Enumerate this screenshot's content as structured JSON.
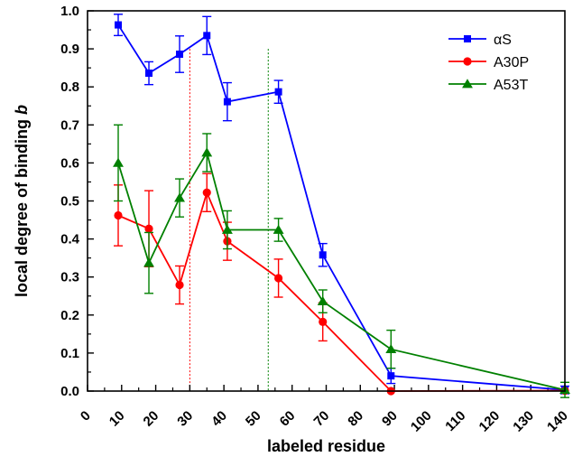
{
  "chart_data": {
    "type": "line",
    "xlabel": "labeled residue",
    "ylabel_prefix": "local degree of binding ",
    "ylabel_var": "b",
    "xlim": [
      0,
      140
    ],
    "ylim": [
      0,
      1.0
    ],
    "x_ticks": [
      0,
      10,
      20,
      30,
      40,
      50,
      60,
      70,
      80,
      90,
      100,
      110,
      120,
      130,
      140
    ],
    "x_tick_labels": [
      "0",
      "10",
      "20",
      "30",
      "40",
      "50",
      "60",
      "70",
      "80",
      "90",
      "100",
      "110",
      "120",
      "130",
      "140"
    ],
    "y_ticks": [
      0.0,
      0.1,
      0.2,
      0.3,
      0.4,
      0.5,
      0.6,
      0.7,
      0.8,
      0.9,
      1.0
    ],
    "y_tick_labels": [
      "0.0",
      "0.1",
      "0.2",
      "0.3",
      "0.4",
      "0.5",
      "0.6",
      "0.7",
      "0.8",
      "0.9",
      "1.0"
    ],
    "grid": false,
    "legend_position": "top-right",
    "series": [
      {
        "name": "αS",
        "color": "#0000ff",
        "marker": "square",
        "x": [
          9,
          18,
          27,
          35,
          41,
          56,
          69,
          89,
          140
        ],
        "y": [
          0.963,
          0.836,
          0.886,
          0.935,
          0.761,
          0.787,
          0.358,
          0.04,
          0.003
        ],
        "err": [
          0.028,
          0.03,
          0.048,
          0.05,
          0.05,
          0.03,
          0.03,
          0.02,
          0.01
        ]
      },
      {
        "name": "A30P",
        "color": "#ff0000",
        "marker": "circle",
        "x": [
          9,
          18,
          27,
          35,
          41,
          56,
          69,
          89,
          140
        ],
        "y": [
          0.462,
          0.427,
          0.279,
          0.522,
          0.394,
          0.297,
          0.182,
          0.0,
          0.001
        ],
        "err": [
          0.08,
          0.1,
          0.05,
          0.05,
          0.05,
          0.05,
          0.05,
          0.0,
          0.0
        ]
      },
      {
        "name": "A53T",
        "color": "#008000",
        "marker": "triangle",
        "x": [
          9,
          18,
          27,
          35,
          41,
          56,
          69,
          89,
          140
        ],
        "y": [
          0.6,
          0.337,
          0.508,
          0.627,
          0.424,
          0.424,
          0.236,
          0.11,
          0.003
        ],
        "err": [
          0.1,
          0.08,
          0.05,
          0.05,
          0.05,
          0.03,
          0.03,
          0.05,
          0.02
        ]
      }
    ],
    "reference_lines": [
      {
        "x": 30,
        "color": "#ff0000"
      },
      {
        "x": 53,
        "color": "#008000"
      }
    ]
  }
}
